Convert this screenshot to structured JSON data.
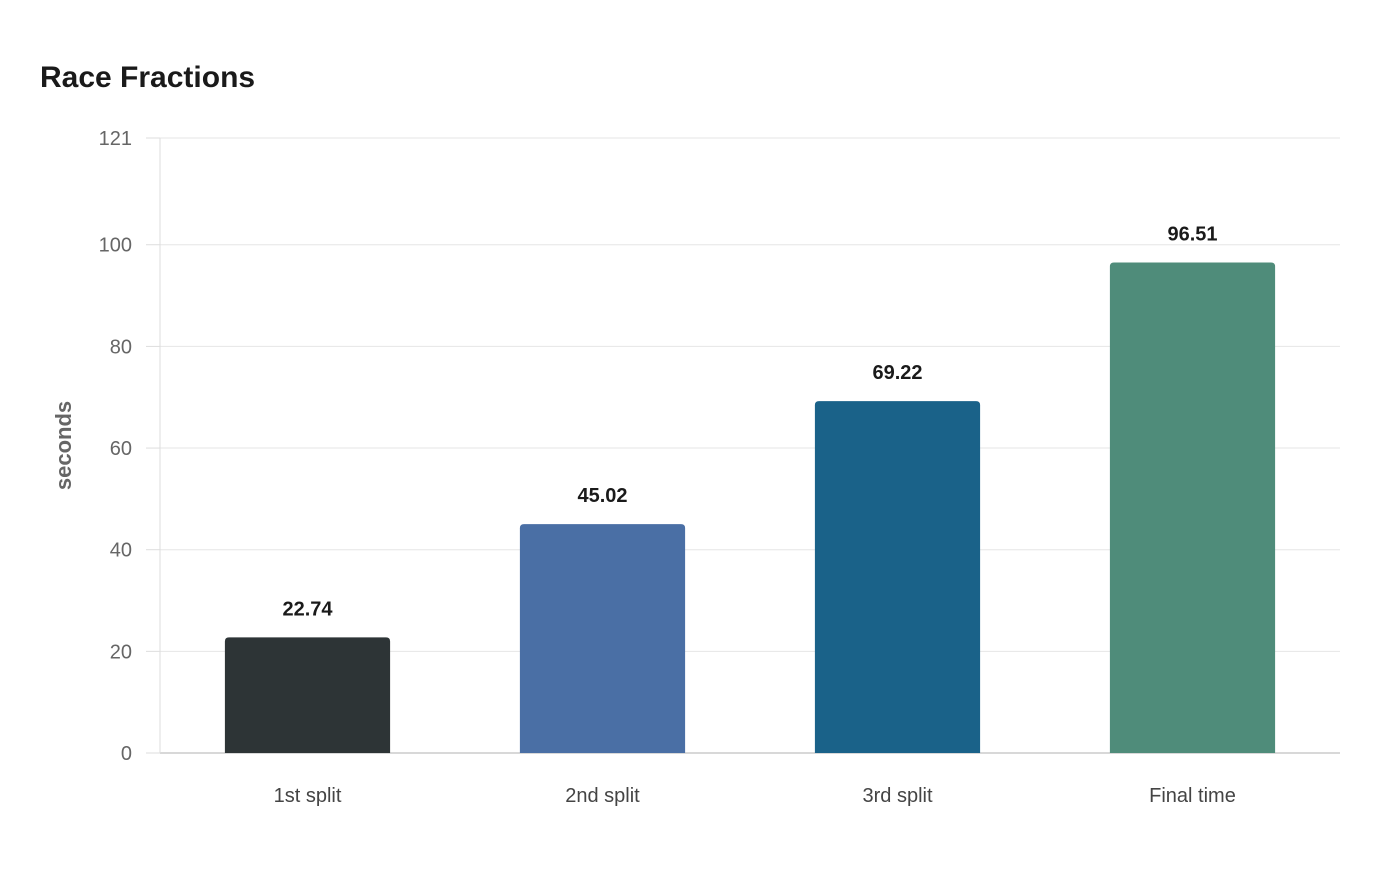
{
  "chart_data": {
    "type": "bar",
    "title": "Race Fractions",
    "xlabel": "",
    "ylabel": "seconds",
    "categories": [
      "1st split",
      "2nd split",
      "3rd split",
      "Final time"
    ],
    "values": [
      22.74,
      45.02,
      69.22,
      96.51
    ],
    "value_labels": [
      "22.74",
      "45.02",
      "69.22",
      "96.51"
    ],
    "bar_colors": [
      "#2d3436",
      "#4a6fa5",
      "#1a6289",
      "#4f8c7a"
    ],
    "ylim": [
      0,
      121
    ],
    "yticks": [
      0,
      20,
      40,
      60,
      80,
      100,
      121
    ],
    "grid": true,
    "legend": "none"
  }
}
